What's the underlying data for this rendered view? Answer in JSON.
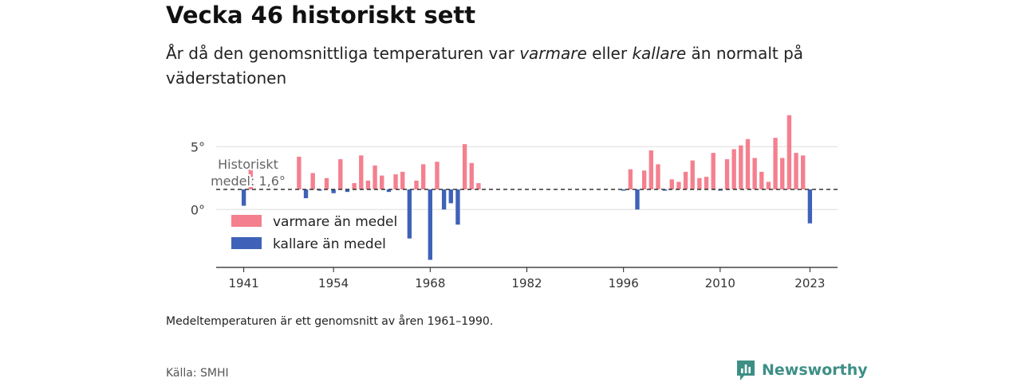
{
  "header": {
    "title": "Vecka 46 historiskt sett",
    "subtitle_pre": "År då den genomsnittliga temperaturen var ",
    "subtitle_warm": "varmare",
    "subtitle_mid": " eller ",
    "subtitle_cold": "kallare",
    "subtitle_post": " än normalt på väderstationen"
  },
  "footer": {
    "note": "Medeltemperaturen är ett genomsnitt av åren 1961–1990.",
    "source": "Källa: SMHI",
    "brand": "Newsworthy"
  },
  "chart_data": {
    "type": "bar",
    "mean": 1.6,
    "mean_label_line1": "Historiskt",
    "mean_label_line2": "medel: 1,6°",
    "y_ticks": [
      0,
      5
    ],
    "y_tick_labels": [
      "0°",
      "5°"
    ],
    "ylim": [
      -4.6,
      7.8
    ],
    "xlim": [
      1937,
      2027
    ],
    "x_ticks": [
      1941,
      1954,
      1968,
      1982,
      1996,
      2010,
      2023
    ],
    "colors": {
      "warm": "#f4808f",
      "cold": "#3f62b8",
      "grid": "#dddddd",
      "axis": "#222222",
      "mean_line": "#333333"
    },
    "legend": {
      "warm_label": "varmare än medel",
      "cold_label": "kallare än medel",
      "position": "bottom-left"
    },
    "series": [
      {
        "x": [
          1941,
          1942,
          1949,
          1950,
          1951,
          1952,
          1953,
          1954,
          1955,
          1956,
          1957,
          1958,
          1959,
          1960,
          1961,
          1962,
          1963,
          1964,
          1965,
          1966,
          1967,
          1968,
          1969,
          1970,
          1971,
          1972,
          1973,
          1974,
          1975,
          1996,
          1997,
          1998,
          1999,
          2000,
          2001,
          2002,
          2003,
          2004,
          2005,
          2006,
          2007,
          2008,
          2009,
          2010,
          2011,
          2012,
          2013,
          2014,
          2015,
          2016,
          2017,
          2018,
          2019,
          2020,
          2021,
          2022,
          2023
        ],
        "values": [
          0.3,
          3.5,
          4.2,
          0.9,
          2.9,
          1.5,
          2.5,
          1.3,
          4.0,
          1.4,
          2.1,
          4.3,
          2.3,
          3.5,
          2.7,
          1.4,
          2.8,
          3.0,
          -2.3,
          2.3,
          3.6,
          -4.0,
          3.8,
          0.0,
          0.5,
          -1.2,
          5.2,
          3.7,
          2.1,
          1.5,
          3.2,
          0.0,
          3.1,
          4.7,
          3.6,
          1.5,
          2.4,
          2.2,
          3.0,
          3.9,
          2.5,
          2.6,
          4.5,
          1.5,
          4.0,
          4.8,
          5.1,
          5.6,
          4.1,
          3.0,
          2.2,
          5.7,
          4.1,
          7.5,
          4.5,
          4.3,
          -1.1
        ]
      }
    ]
  }
}
